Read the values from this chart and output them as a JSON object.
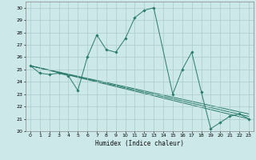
{
  "xlabel": "Humidex (Indice chaleur)",
  "xlim": [
    -0.5,
    23.5
  ],
  "ylim": [
    20,
    30.5
  ],
  "yticks": [
    20,
    21,
    22,
    23,
    24,
    25,
    26,
    27,
    28,
    29,
    30
  ],
  "xticks": [
    0,
    1,
    2,
    3,
    4,
    5,
    6,
    7,
    8,
    9,
    10,
    11,
    12,
    13,
    14,
    15,
    16,
    17,
    18,
    19,
    20,
    21,
    22,
    23
  ],
  "bg_color": "#cce8e8",
  "grid_color": "#aacccc",
  "line_color": "#2a7a6a",
  "main_line": {
    "x": [
      0,
      1,
      2,
      3,
      4,
      5,
      6,
      7,
      8,
      9,
      10,
      11,
      12,
      13,
      15,
      16,
      17,
      18,
      19,
      20,
      21,
      22,
      23
    ],
    "y": [
      25.3,
      24.7,
      24.6,
      24.7,
      24.5,
      23.3,
      26.0,
      27.8,
      26.6,
      26.4,
      27.5,
      29.2,
      29.8,
      30.0,
      23.0,
      25.0,
      26.4,
      23.2,
      20.2,
      20.7,
      21.2,
      21.4,
      21.0
    ]
  },
  "trend_lines": [
    {
      "x": [
        0,
        23
      ],
      "y": [
        25.3,
        21.0
      ]
    },
    {
      "x": [
        0,
        23
      ],
      "y": [
        25.3,
        21.2
      ]
    },
    {
      "x": [
        0,
        23
      ],
      "y": [
        25.3,
        21.4
      ]
    }
  ]
}
